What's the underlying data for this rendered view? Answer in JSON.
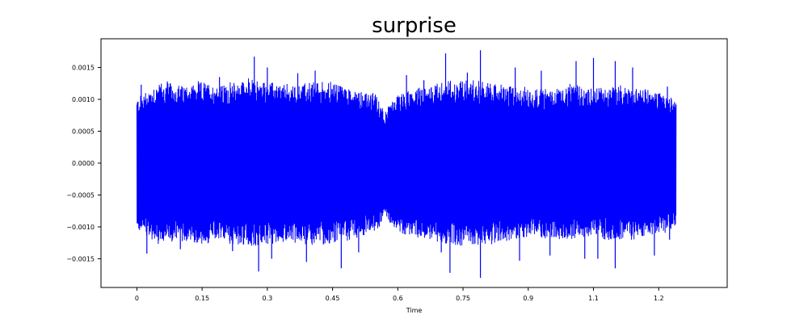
{
  "chart_data": {
    "type": "line",
    "title": "surprise",
    "xlabel": "Time",
    "ylabel": "",
    "xlim": [
      -0.0825,
      1.3575
    ],
    "ylim": [
      -0.00195,
      0.00195
    ],
    "x_ticks": [
      0,
      0.15,
      0.3,
      0.45,
      0.6,
      0.75,
      0.9,
      1.05,
      1.2
    ],
    "x_tick_labels": [
      "0",
      "0.15",
      "0.3",
      "0.45",
      "0.6",
      "0.75",
      "0.9",
      "1.1",
      "1.2"
    ],
    "y_ticks": [
      -0.0015,
      -0.001,
      -0.0005,
      0,
      0.0005,
      0.001,
      0.0015
    ],
    "y_tick_labels": [
      "−0.0015",
      "−0.0010",
      "−0.0005",
      "0.0000",
      "0.0005",
      "0.0010",
      "0.0015"
    ],
    "grid": false,
    "series": [
      {
        "color": "#0000ff",
        "duration": 1.24,
        "envelope": {
          "x": [
            0,
            0.05,
            0.1,
            0.15,
            0.2,
            0.25,
            0.3,
            0.35,
            0.4,
            0.45,
            0.5,
            0.55,
            0.57,
            0.6,
            0.65,
            0.7,
            0.75,
            0.8,
            0.85,
            0.9,
            0.95,
            1.0,
            1.05,
            1.1,
            1.15,
            1.2,
            1.24
          ],
          "amplitude": [
            0.00105,
            0.0013,
            0.00125,
            0.0013,
            0.00125,
            0.00135,
            0.0013,
            0.00125,
            0.0013,
            0.0013,
            0.0012,
            0.0011,
            0.00085,
            0.0011,
            0.0012,
            0.0013,
            0.00135,
            0.0013,
            0.00125,
            0.0012,
            0.0012,
            0.00125,
            0.0012,
            0.00125,
            0.0012,
            0.00115,
            0.00105
          ]
        },
        "peaks": [
          {
            "x": 0.01,
            "y": 0.00123
          },
          {
            "x": 0.023,
            "y": -0.00142
          },
          {
            "x": 0.07,
            "y": 0.00128
          },
          {
            "x": 0.1,
            "y": -0.00135
          },
          {
            "x": 0.19,
            "y": 0.00135
          },
          {
            "x": 0.22,
            "y": -0.00138
          },
          {
            "x": 0.245,
            "y": 0.00125
          },
          {
            "x": 0.27,
            "y": 0.00167
          },
          {
            "x": 0.28,
            "y": -0.0017
          },
          {
            "x": 0.3,
            "y": 0.0015
          },
          {
            "x": 0.31,
            "y": -0.0015
          },
          {
            "x": 0.37,
            "y": 0.00141
          },
          {
            "x": 0.39,
            "y": -0.00155
          },
          {
            "x": 0.41,
            "y": 0.00145
          },
          {
            "x": 0.47,
            "y": -0.00165
          },
          {
            "x": 0.51,
            "y": -0.0014
          },
          {
            "x": 0.62,
            "y": 0.00138
          },
          {
            "x": 0.66,
            "y": 0.0013
          },
          {
            "x": 0.7,
            "y": -0.0014
          },
          {
            "x": 0.71,
            "y": 0.00172
          },
          {
            "x": 0.72,
            "y": -0.00172
          },
          {
            "x": 0.76,
            "y": 0.00142
          },
          {
            "x": 0.79,
            "y": 0.00177
          },
          {
            "x": 0.79,
            "y": -0.0018
          },
          {
            "x": 0.87,
            "y": 0.0015
          },
          {
            "x": 0.88,
            "y": -0.00153
          },
          {
            "x": 0.93,
            "y": 0.00145
          },
          {
            "x": 0.95,
            "y": -0.00145
          },
          {
            "x": 1.01,
            "y": 0.0016
          },
          {
            "x": 1.03,
            "y": -0.0015
          },
          {
            "x": 1.05,
            "y": 0.00165
          },
          {
            "x": 1.06,
            "y": -0.0015
          },
          {
            "x": 1.1,
            "y": 0.0016
          },
          {
            "x": 1.1,
            "y": -0.00165
          },
          {
            "x": 1.14,
            "y": 0.0015
          },
          {
            "x": 1.19,
            "y": -0.00145
          },
          {
            "x": 1.22,
            "y": 0.0012
          },
          {
            "x": 1.225,
            "y": -0.0012
          }
        ]
      }
    ]
  }
}
